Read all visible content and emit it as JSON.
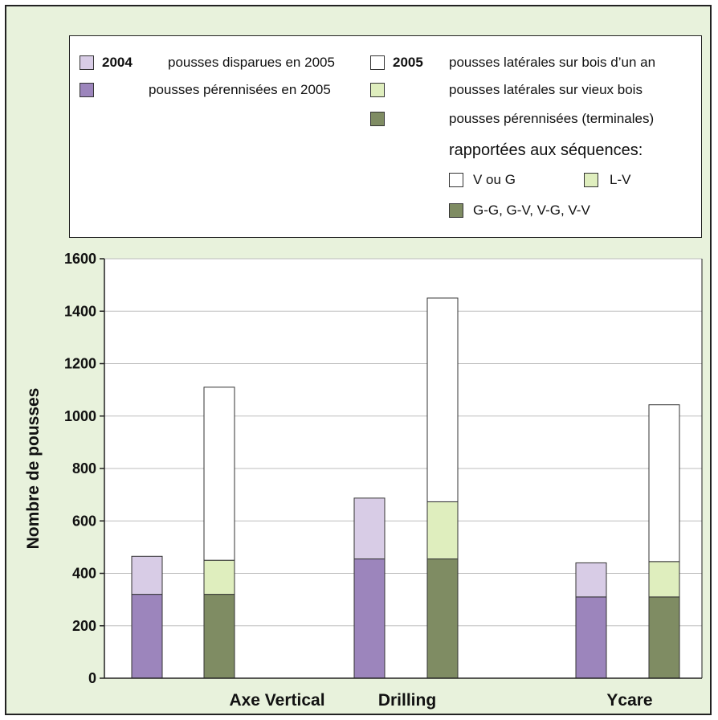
{
  "legend": {
    "y2004": "2004",
    "y2005": "2005",
    "disparues": "pousses disparues en 2005",
    "perennisees": "pousses pérennisées en 2005",
    "lat_un_an": "pousses latérales sur bois d’un an",
    "lat_vieux": "pousses latérales sur vieux bois",
    "terminales": "pousses pérennisées (terminales)",
    "rapportees": "rapportées aux séquences:",
    "seq_vg": "V ou G",
    "seq_lv": "L-V",
    "seq_gg": "G-G, G-V, V-G, V-V"
  },
  "colors": {
    "disparues": "#d8cce6",
    "perennisees_2004": "#9c85bc",
    "lateral_un_an": "#ffffff",
    "lateral_vieux": "#dfeebe",
    "terminales": "#7f8c63",
    "frame_bg": "#e8f2dc"
  },
  "chart_data": {
    "type": "bar",
    "stacked": true,
    "ylabel": "Nombre de pousses",
    "ylim": [
      0,
      1600
    ],
    "yticks": [
      0,
      200,
      400,
      600,
      800,
      1000,
      1200,
      1400,
      1600
    ],
    "grid": true,
    "categories": [
      "Axe Vertical",
      "Drilling",
      "Ycare"
    ],
    "bars": [
      {
        "group": "Axe Vertical",
        "year": "2004",
        "segments": [
          {
            "series": "pousses pérennisées en 2005",
            "value": 320
          },
          {
            "series": "pousses disparues en 2005",
            "value": 145
          }
        ]
      },
      {
        "group": "Axe Vertical",
        "year": "2005",
        "segments": [
          {
            "series": "pousses pérennisées (terminales)",
            "value": 320
          },
          {
            "series": "pousses latérales sur vieux bois",
            "value": 130
          },
          {
            "series": "pousses latérales sur bois d’un an",
            "value": 660
          }
        ]
      },
      {
        "group": "Drilling",
        "year": "2004",
        "segments": [
          {
            "series": "pousses pérennisées en 2005",
            "value": 455
          },
          {
            "series": "pousses disparues en 2005",
            "value": 232
          }
        ]
      },
      {
        "group": "Drilling",
        "year": "2005",
        "segments": [
          {
            "series": "pousses pérennisées (terminales)",
            "value": 455
          },
          {
            "series": "pousses latérales sur vieux bois",
            "value": 218
          },
          {
            "series": "pousses latérales sur bois d’un an",
            "value": 777
          }
        ]
      },
      {
        "group": "Ycare",
        "year": "2004",
        "segments": [
          {
            "series": "pousses pérennisées en 2005",
            "value": 310
          },
          {
            "series": "pousses disparues en 2005",
            "value": 130
          }
        ]
      },
      {
        "group": "Ycare",
        "year": "2005",
        "segments": [
          {
            "series": "pousses pérennisées (terminales)",
            "value": 310
          },
          {
            "series": "pousses latérales sur vieux bois",
            "value": 135
          },
          {
            "series": "pousses latérales sur bois d’un an",
            "value": 598
          }
        ]
      }
    ]
  }
}
